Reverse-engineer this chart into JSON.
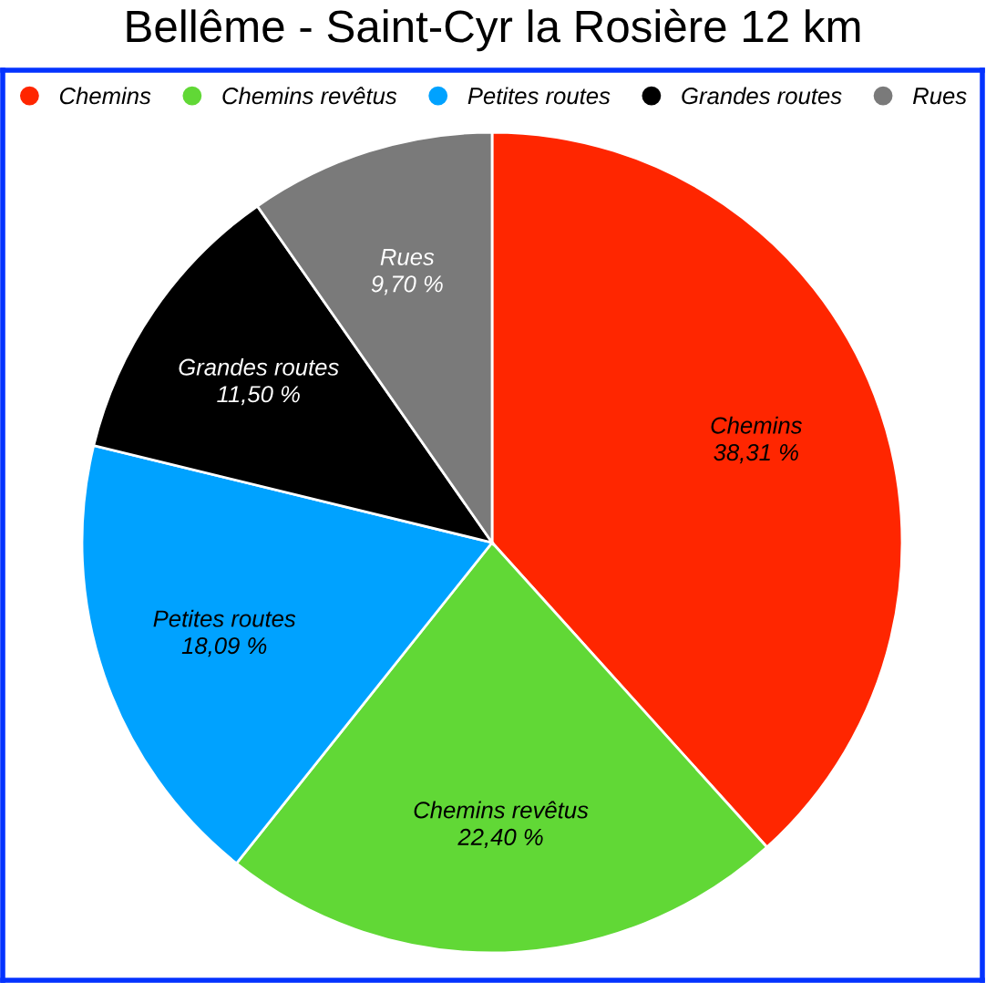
{
  "chart_data": {
    "type": "pie",
    "title": "Bellême - Saint-Cyr la Rosière 12 km",
    "categories": [
      "Chemins",
      "Chemins revêtus",
      "Petites routes",
      "Grandes routes",
      "Rues"
    ],
    "values": [
      38.31,
      22.4,
      18.09,
      11.5,
      9.7
    ],
    "value_labels": [
      "38,31 %",
      "22,40 %",
      "18,09 %",
      "11,50 %",
      "9,70 %"
    ],
    "colors": [
      "#ff2600",
      "#61d836",
      "#00a2ff",
      "#000000",
      "#7a7a7a"
    ],
    "legend": "top"
  }
}
